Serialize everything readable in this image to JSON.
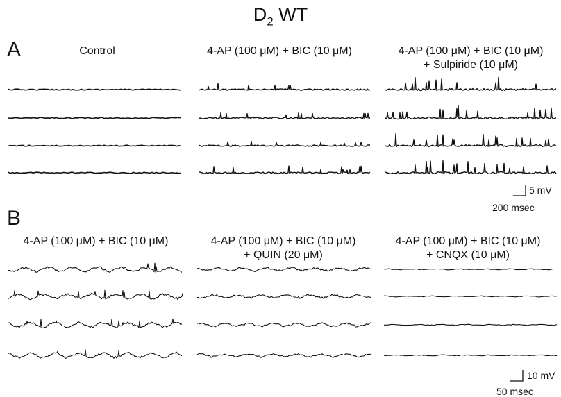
{
  "figure": {
    "title": {
      "main": "D",
      "sub": "2",
      "suffix": " WT"
    },
    "panels": [
      {
        "letter": "A",
        "conditions": [
          {
            "line1": "Control",
            "line2": ""
          },
          {
            "line1": "4-AP (100 μM) + BIC (10 μM)",
            "line2": ""
          },
          {
            "line1": "4-AP (100 μM) + BIC (10 μM)",
            "line2": "+ Sulpiride (10 μM)"
          }
        ],
        "scale_bar": {
          "voltage": "5 mV",
          "time": "200 msec"
        }
      },
      {
        "letter": "B",
        "conditions": [
          {
            "line1": "4-AP (100 μM) + BIC (10 μM)",
            "line2": ""
          },
          {
            "line1": "4-AP (100 μM) + BIC (10 μM)",
            "line2": "+ QUIN (20 μM)"
          },
          {
            "line1": "4-AP (100 μM) + BIC (10 μM)",
            "line2": "+ CNQX (10 μM)"
          }
        ],
        "scale_bar": {
          "voltage": "10 mV",
          "time": "50 msec"
        }
      }
    ],
    "trace_color": "#111111"
  }
}
